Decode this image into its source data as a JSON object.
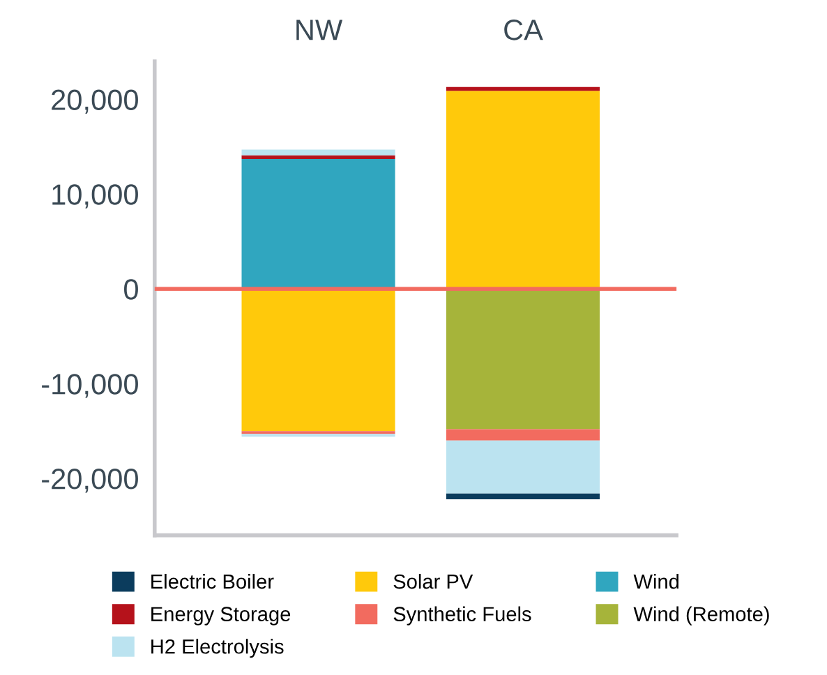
{
  "chart_data": {
    "type": "bar",
    "stacked": true,
    "categories": [
      "NW",
      "CA"
    ],
    "series": [
      {
        "name": "Solar PV",
        "color": "#ffc90b",
        "values": [
          -15000,
          20900
        ]
      },
      {
        "name": "Wind",
        "color": "#30a6bf",
        "values": [
          13700,
          null
        ]
      },
      {
        "name": "Wind (Remote)",
        "color": "#a6b43a",
        "values": [
          null,
          -14800
        ]
      },
      {
        "name": "Energy Storage",
        "color": "#b5121b",
        "values": [
          400,
          400
        ]
      },
      {
        "name": "Synthetic Fuels",
        "color": "#f26b5f",
        "values": [
          -300,
          -1200
        ]
      },
      {
        "name": "H2 Electrolysis",
        "color": "#bbe3f0",
        "values": [
          600,
          -5600
        ]
      },
      {
        "color": "#bbe3f0",
        "values": [
          -300,
          null
        ]
      },
      {
        "name": "Electric Boiler",
        "color": "#0b3c5d",
        "values": [
          null,
          -600
        ]
      }
    ],
    "ylim": [
      -26000,
      24000
    ],
    "yticks": [
      {
        "value": -20000,
        "label": "-20,000"
      },
      {
        "value": -10000,
        "label": "-10,000"
      },
      0,
      {
        "value": 10000,
        "label": "10,000"
      },
      {
        "value": 20000,
        "label": "20,000"
      }
    ],
    "ref_lines": [
      {
        "axis": "y",
        "value": 0,
        "color": "#f26b5f"
      }
    ],
    "grid": false,
    "legend": "bottom"
  }
}
